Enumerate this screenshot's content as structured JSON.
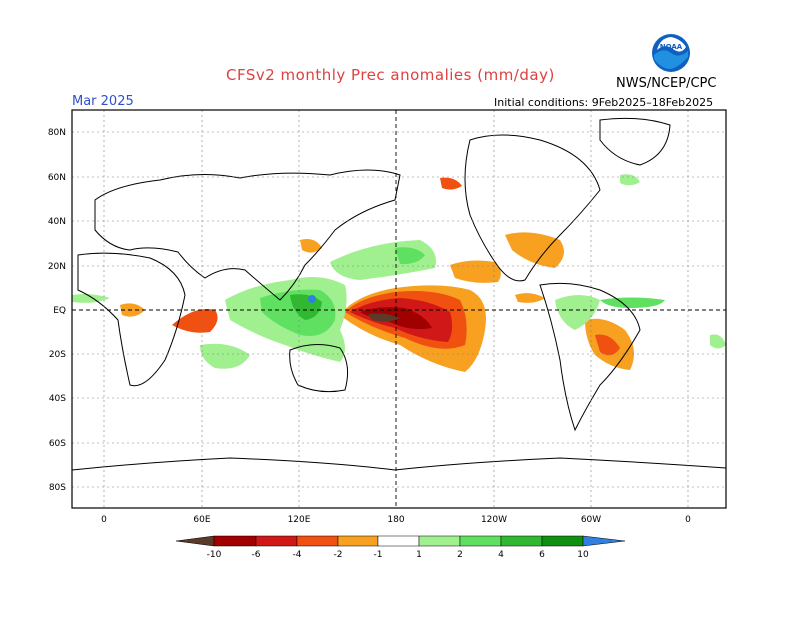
{
  "header": {
    "title": "CFSv2 monthly Prec anomalies (mm/day)",
    "month": "Mar 2025",
    "initial_conditions": "Initial conditions: 9Feb2025–18Feb2025",
    "agency": "NWS/NCEP/CPC",
    "logo_text": "NOAA"
  },
  "map": {
    "lat_labels": [
      "80N",
      "60N",
      "40N",
      "20N",
      "EQ",
      "20S",
      "40S",
      "60S",
      "80S"
    ],
    "lon_labels": [
      "0",
      "60E",
      "120E",
      "180",
      "120W",
      "60W",
      "0"
    ]
  },
  "legend": {
    "labels": [
      "-10",
      "-6",
      "-4",
      "-2",
      "-1",
      "1",
      "2",
      "4",
      "6",
      "10"
    ],
    "colors": {
      "lt_-10": "#5a3a28",
      "-10_-6": "#a00000",
      "-6_-4": "#d01818",
      "-4_-2": "#f05010",
      "-2_-1": "#f8a020",
      "-1_1": "#ffffff",
      "1_2": "#a0f090",
      "2_4": "#60e060",
      "4_6": "#30b830",
      "6_10": "#109010",
      "gt_10": "#3080e0"
    }
  }
}
